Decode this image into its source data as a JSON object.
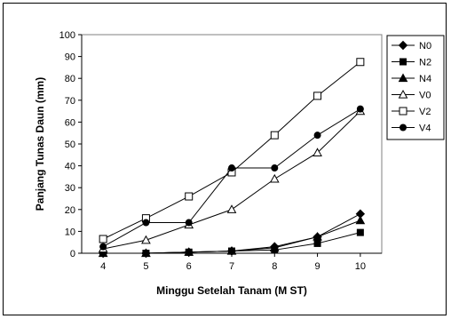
{
  "chart_data": {
    "type": "line",
    "title": "",
    "xlabel": "Minggu Setelah Tanam (M ST)",
    "ylabel": "Panjang Tunas Daun (mm)",
    "x": [
      4,
      5,
      6,
      7,
      8,
      9,
      10
    ],
    "xlim": [
      3.5,
      10.5
    ],
    "ylim": [
      0,
      100
    ],
    "yticks": [
      0,
      10,
      20,
      30,
      40,
      50,
      60,
      70,
      80,
      90,
      100
    ],
    "grid": false,
    "legend_position": "right",
    "series": [
      {
        "name": "N0",
        "marker": "diamond-filled",
        "values": [
          0,
          0,
          0.5,
          1,
          3,
          7.5,
          18
        ]
      },
      {
        "name": "N2",
        "marker": "square-filled",
        "values": [
          0,
          0,
          0.5,
          1,
          1.5,
          4.5,
          9.5
        ]
      },
      {
        "name": "N4",
        "marker": "triangle-filled",
        "values": [
          0,
          0,
          0.5,
          1,
          2.5,
          7.5,
          15
        ]
      },
      {
        "name": "V0",
        "marker": "triangle-open",
        "values": [
          2,
          6,
          13,
          20,
          34,
          46,
          65
        ]
      },
      {
        "name": "V2",
        "marker": "square-open",
        "values": [
          6.5,
          16,
          26,
          37,
          54,
          72,
          87.5
        ]
      },
      {
        "name": "V4",
        "marker": "circle-filled",
        "values": [
          3,
          14,
          14,
          39,
          39,
          54,
          66
        ]
      }
    ]
  }
}
